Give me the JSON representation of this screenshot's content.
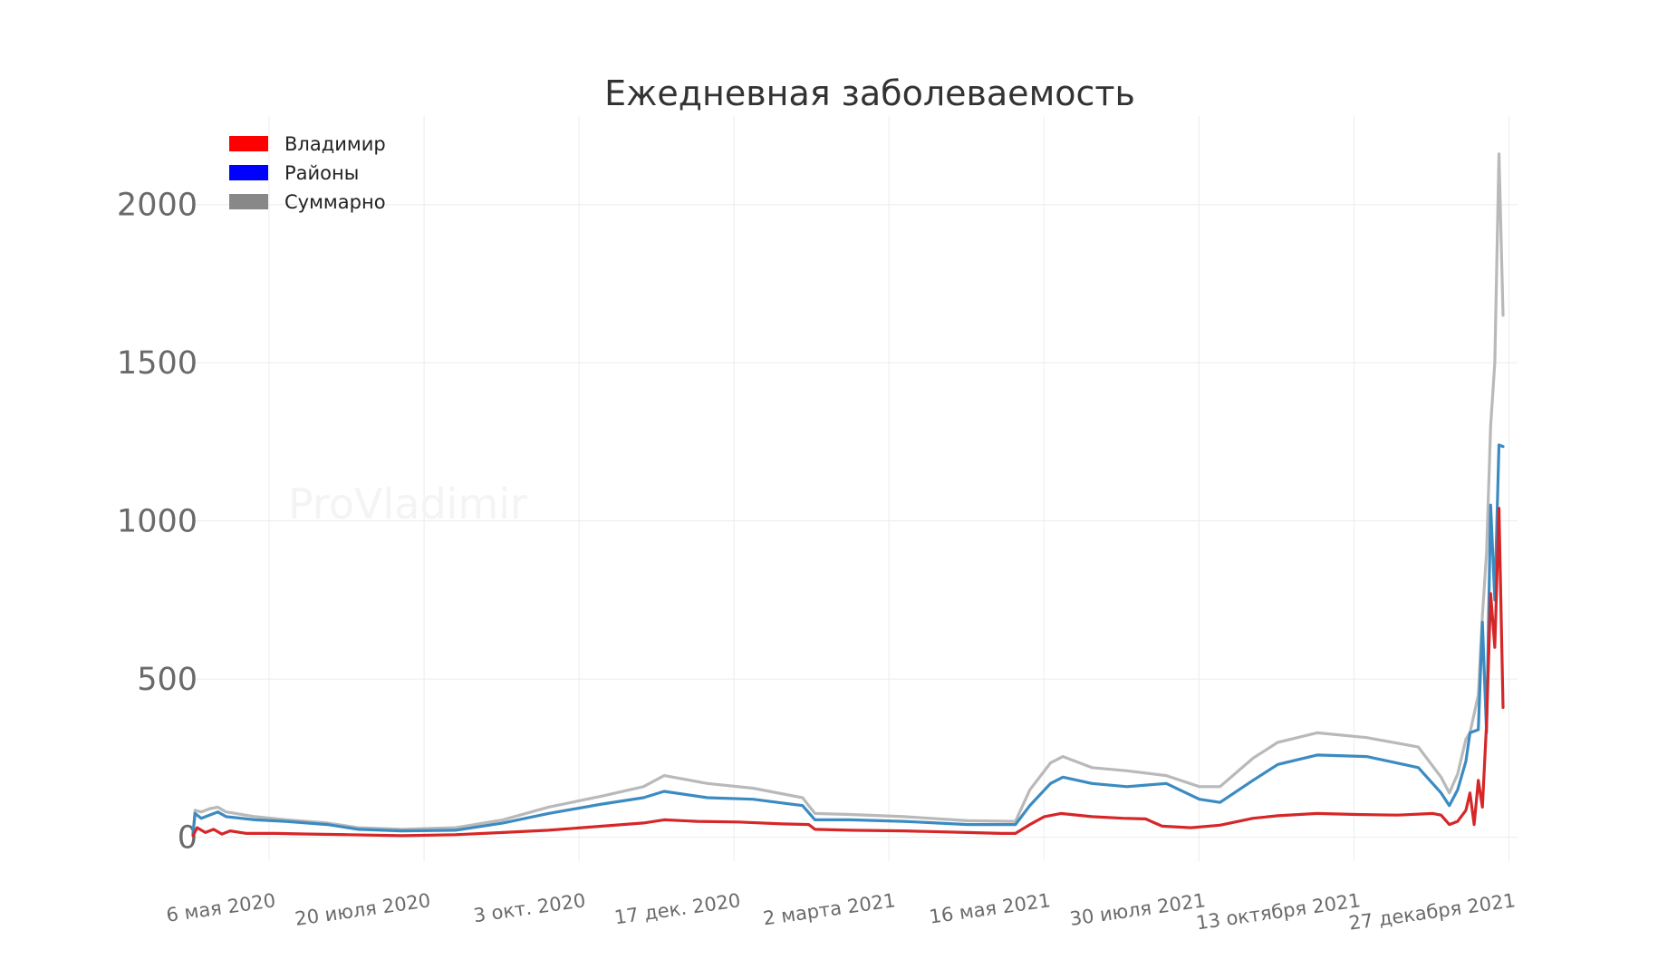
{
  "chart_data": {
    "type": "line",
    "title": "Ежедневная заболеваемость",
    "watermark": "ProVladimir",
    "xlabel": "",
    "ylabel": "",
    "x_ticks": [
      "6 мая 2020",
      "20 июля 2020",
      "3 окт. 2020",
      "17 дек. 2020",
      "2 марта 2021",
      "16 мая 2021",
      "30 июля 2021",
      "13 октября 2021",
      "27 декабря 2021"
    ],
    "y_ticks": [
      "0",
      "500",
      "1000",
      "1500",
      "2000"
    ],
    "xlim": [
      "2020-05-06",
      "2022-02-06"
    ],
    "ylim": [
      -90,
      2280
    ],
    "grid": true,
    "legend_position": "top-left",
    "series": [
      {
        "name": "Владимир",
        "color": "#d62728",
        "legend_color": "#ff0000",
        "points": [
          [
            "2020-05-06",
            5
          ],
          [
            "2020-05-08",
            30
          ],
          [
            "2020-05-12",
            15
          ],
          [
            "2020-05-16",
            25
          ],
          [
            "2020-05-20",
            10
          ],
          [
            "2020-05-24",
            20
          ],
          [
            "2020-06-01",
            12
          ],
          [
            "2020-06-15",
            12
          ],
          [
            "2020-07-01",
            10
          ],
          [
            "2020-07-20",
            8
          ],
          [
            "2020-08-15",
            5
          ],
          [
            "2020-09-10",
            8
          ],
          [
            "2020-10-03",
            15
          ],
          [
            "2020-10-25",
            22
          ],
          [
            "2020-11-20",
            35
          ],
          [
            "2020-12-10",
            45
          ],
          [
            "2020-12-20",
            55
          ],
          [
            "2021-01-05",
            50
          ],
          [
            "2021-01-25",
            48
          ],
          [
            "2021-02-15",
            42
          ],
          [
            "2021-02-28",
            40
          ],
          [
            "2021-03-03",
            25
          ],
          [
            "2021-03-20",
            22
          ],
          [
            "2021-04-15",
            20
          ],
          [
            "2021-05-16",
            15
          ],
          [
            "2021-06-01",
            12
          ],
          [
            "2021-06-08",
            12
          ],
          [
            "2021-06-15",
            40
          ],
          [
            "2021-06-22",
            65
          ],
          [
            "2021-06-30",
            75
          ],
          [
            "2021-07-15",
            65
          ],
          [
            "2021-07-30",
            60
          ],
          [
            "2021-08-10",
            58
          ],
          [
            "2021-08-18",
            35
          ],
          [
            "2021-09-01",
            30
          ],
          [
            "2021-09-15",
            38
          ],
          [
            "2021-10-01",
            60
          ],
          [
            "2021-10-13",
            68
          ],
          [
            "2021-11-01",
            75
          ],
          [
            "2021-11-20",
            72
          ],
          [
            "2021-12-10",
            70
          ],
          [
            "2021-12-27",
            75
          ],
          [
            "2021-12-31",
            70
          ],
          [
            "2022-01-04",
            40
          ],
          [
            "2022-01-08",
            50
          ],
          [
            "2022-01-12",
            85
          ],
          [
            "2022-01-14",
            140
          ],
          [
            "2022-01-16",
            40
          ],
          [
            "2022-01-18",
            180
          ],
          [
            "2022-01-20",
            95
          ],
          [
            "2022-01-22",
            360
          ],
          [
            "2022-01-24",
            770
          ],
          [
            "2022-01-26",
            600
          ],
          [
            "2022-01-28",
            1040
          ],
          [
            "2022-01-30",
            410
          ]
        ]
      },
      {
        "name": "Районы",
        "color": "#3b8bc2",
        "legend_color": "#0000ff",
        "points": [
          [
            "2020-05-06",
            10
          ],
          [
            "2020-05-07",
            75
          ],
          [
            "2020-05-10",
            60
          ],
          [
            "2020-05-14",
            70
          ],
          [
            "2020-05-18",
            80
          ],
          [
            "2020-05-22",
            65
          ],
          [
            "2020-06-05",
            55
          ],
          [
            "2020-06-20",
            50
          ],
          [
            "2020-07-10",
            40
          ],
          [
            "2020-07-25",
            25
          ],
          [
            "2020-08-15",
            20
          ],
          [
            "2020-09-10",
            22
          ],
          [
            "2020-10-03",
            45
          ],
          [
            "2020-10-25",
            75
          ],
          [
            "2020-11-20",
            105
          ],
          [
            "2020-12-10",
            125
          ],
          [
            "2020-12-20",
            145
          ],
          [
            "2021-01-10",
            125
          ],
          [
            "2021-02-01",
            120
          ],
          [
            "2021-02-25",
            100
          ],
          [
            "2021-03-03",
            55
          ],
          [
            "2021-03-20",
            55
          ],
          [
            "2021-04-15",
            50
          ],
          [
            "2021-05-16",
            40
          ],
          [
            "2021-06-08",
            40
          ],
          [
            "2021-06-15",
            100
          ],
          [
            "2021-06-25",
            170
          ],
          [
            "2021-07-01",
            190
          ],
          [
            "2021-07-15",
            170
          ],
          [
            "2021-08-01",
            160
          ],
          [
            "2021-08-20",
            170
          ],
          [
            "2021-09-05",
            120
          ],
          [
            "2021-09-15",
            110
          ],
          [
            "2021-10-01",
            180
          ],
          [
            "2021-10-13",
            230
          ],
          [
            "2021-11-01",
            260
          ],
          [
            "2021-11-25",
            255
          ],
          [
            "2021-12-20",
            220
          ],
          [
            "2021-12-31",
            140
          ],
          [
            "2022-01-04",
            100
          ],
          [
            "2022-01-08",
            150
          ],
          [
            "2022-01-12",
            240
          ],
          [
            "2022-01-14",
            330
          ],
          [
            "2022-01-18",
            340
          ],
          [
            "2022-01-20",
            680
          ],
          [
            "2022-01-22",
            330
          ],
          [
            "2022-01-24",
            1050
          ],
          [
            "2022-01-26",
            750
          ],
          [
            "2022-01-28",
            1240
          ],
          [
            "2022-01-30",
            1235
          ]
        ]
      },
      {
        "name": "Суммарно",
        "color": "#b9b9b9",
        "legend_color": "#888888",
        "points": [
          [
            "2020-05-06",
            10
          ],
          [
            "2020-05-07",
            85
          ],
          [
            "2020-05-10",
            80
          ],
          [
            "2020-05-14",
            90
          ],
          [
            "2020-05-18",
            95
          ],
          [
            "2020-05-22",
            80
          ],
          [
            "2020-06-05",
            65
          ],
          [
            "2020-06-20",
            55
          ],
          [
            "2020-07-10",
            45
          ],
          [
            "2020-07-25",
            30
          ],
          [
            "2020-08-15",
            25
          ],
          [
            "2020-09-10",
            30
          ],
          [
            "2020-10-03",
            55
          ],
          [
            "2020-10-25",
            95
          ],
          [
            "2020-11-20",
            130
          ],
          [
            "2020-12-10",
            160
          ],
          [
            "2020-12-20",
            195
          ],
          [
            "2021-01-10",
            170
          ],
          [
            "2021-02-01",
            155
          ],
          [
            "2021-02-25",
            125
          ],
          [
            "2021-03-03",
            75
          ],
          [
            "2021-03-20",
            72
          ],
          [
            "2021-04-15",
            65
          ],
          [
            "2021-05-16",
            52
          ],
          [
            "2021-06-08",
            50
          ],
          [
            "2021-06-15",
            150
          ],
          [
            "2021-06-25",
            235
          ],
          [
            "2021-07-01",
            255
          ],
          [
            "2021-07-15",
            220
          ],
          [
            "2021-08-01",
            210
          ],
          [
            "2021-08-20",
            195
          ],
          [
            "2021-09-05",
            160
          ],
          [
            "2021-09-15",
            160
          ],
          [
            "2021-10-01",
            250
          ],
          [
            "2021-10-13",
            300
          ],
          [
            "2021-11-01",
            330
          ],
          [
            "2021-11-25",
            315
          ],
          [
            "2021-12-20",
            285
          ],
          [
            "2021-12-31",
            190
          ],
          [
            "2022-01-04",
            140
          ],
          [
            "2022-01-08",
            200
          ],
          [
            "2022-01-12",
            310
          ],
          [
            "2022-01-14",
            330
          ],
          [
            "2022-01-18",
            450
          ],
          [
            "2022-01-20",
            700
          ],
          [
            "2022-01-22",
            900
          ],
          [
            "2022-01-24",
            1300
          ],
          [
            "2022-01-26",
            1500
          ],
          [
            "2022-01-28",
            2160
          ],
          [
            "2022-01-30",
            1650
          ]
        ]
      }
    ]
  }
}
